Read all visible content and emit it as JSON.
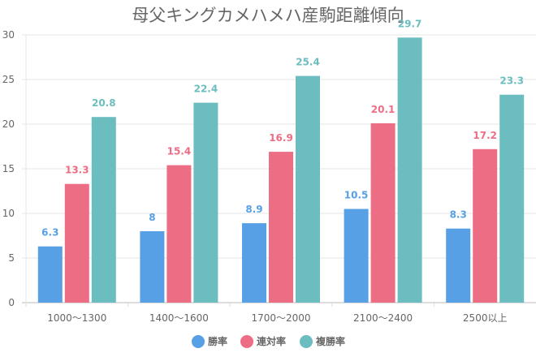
{
  "chart_data": {
    "type": "bar",
    "title": "母父キングカメハメハ産駒距離傾向",
    "categories": [
      "1000〜1300",
      "1400〜1600",
      "1700〜2000",
      "2100〜2400",
      "2500以上"
    ],
    "series": [
      {
        "name": "勝率",
        "color": "#57a0e5",
        "values": [
          6.3,
          8,
          8.9,
          10.5,
          8.3
        ],
        "labels": [
          "6.3",
          "8",
          "8.9",
          "10.5",
          "8.3"
        ]
      },
      {
        "name": "連対率",
        "color": "#ed6d85",
        "values": [
          13.3,
          15.4,
          16.9,
          20.1,
          17.2
        ],
        "labels": [
          "13.3",
          "15.4",
          "16.9",
          "20.1",
          "17.2"
        ]
      },
      {
        "name": "複勝率",
        "color": "#6cbdbf",
        "values": [
          20.8,
          22.4,
          25.4,
          29.7,
          23.3
        ],
        "labels": [
          "20.8",
          "22.4",
          "25.4",
          "29.7",
          "23.3"
        ]
      }
    ],
    "yticks": [
      "0",
      "5",
      "10",
      "15",
      "20",
      "25",
      "30"
    ],
    "ylim": [
      0,
      30
    ],
    "xlabel": "",
    "ylabel": "",
    "grid": true,
    "legend": "bottom"
  }
}
